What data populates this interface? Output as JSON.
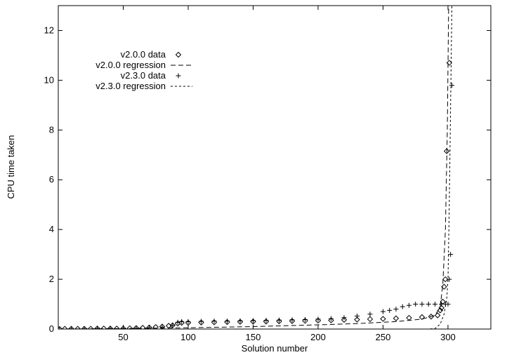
{
  "chart_data": {
    "type": "scatter",
    "xlabel": "Solution number",
    "ylabel": "CPU time taken",
    "xlim": [
      0,
      333
    ],
    "ylim": [
      0,
      13
    ],
    "x_ticks": [
      50,
      100,
      150,
      200,
      250,
      300
    ],
    "y_ticks": [
      0,
      2,
      4,
      6,
      8,
      10,
      12
    ],
    "grid": false,
    "legend_position": "top-left",
    "series": [
      {
        "name": "v2.0.0 data",
        "kind": "points",
        "marker": "diamond",
        "points": [
          [
            1,
            0.0
          ],
          [
            5,
            0.01
          ],
          [
            10,
            0.01
          ],
          [
            15,
            0.01
          ],
          [
            20,
            0.01
          ],
          [
            25,
            0.01
          ],
          [
            30,
            0.02
          ],
          [
            35,
            0.02
          ],
          [
            40,
            0.02
          ],
          [
            45,
            0.02
          ],
          [
            50,
            0.02
          ],
          [
            55,
            0.03
          ],
          [
            60,
            0.04
          ],
          [
            65,
            0.05
          ],
          [
            70,
            0.06
          ],
          [
            75,
            0.08
          ],
          [
            80,
            0.1
          ],
          [
            85,
            0.13
          ],
          [
            88,
            0.15
          ],
          [
            92,
            0.22
          ],
          [
            95,
            0.25
          ],
          [
            100,
            0.25
          ],
          [
            110,
            0.26
          ],
          [
            120,
            0.27
          ],
          [
            130,
            0.28
          ],
          [
            140,
            0.29
          ],
          [
            150,
            0.3
          ],
          [
            160,
            0.3
          ],
          [
            170,
            0.31
          ],
          [
            180,
            0.32
          ],
          [
            190,
            0.33
          ],
          [
            200,
            0.34
          ],
          [
            210,
            0.35
          ],
          [
            220,
            0.37
          ],
          [
            230,
            0.38
          ],
          [
            240,
            0.4
          ],
          [
            250,
            0.41
          ],
          [
            260,
            0.43
          ],
          [
            270,
            0.45
          ],
          [
            280,
            0.48
          ],
          [
            287,
            0.5
          ],
          [
            292,
            0.55
          ],
          [
            294,
            0.75
          ],
          [
            295,
            0.85
          ],
          [
            296,
            1.1
          ],
          [
            297,
            1.7
          ],
          [
            298,
            2.0
          ],
          [
            299,
            7.15
          ],
          [
            301,
            10.7
          ]
        ]
      },
      {
        "name": "v2.0.0 regression",
        "kind": "line",
        "dash": "7,4",
        "points": [
          [
            1,
            0.0
          ],
          [
            50,
            0.02
          ],
          [
            100,
            0.05
          ],
          [
            150,
            0.1
          ],
          [
            200,
            0.17
          ],
          [
            230,
            0.22
          ],
          [
            260,
            0.3
          ],
          [
            280,
            0.4
          ],
          [
            290,
            0.55
          ],
          [
            294,
            0.9
          ],
          [
            296,
            1.8
          ],
          [
            298,
            4.0
          ],
          [
            299.5,
            8.0
          ],
          [
            300.5,
            13.0
          ]
        ]
      },
      {
        "name": "v2.3.0 data",
        "kind": "points",
        "marker": "plus",
        "points": [
          [
            1,
            0.0
          ],
          [
            10,
            0.01
          ],
          [
            20,
            0.01
          ],
          [
            30,
            0.02
          ],
          [
            40,
            0.02
          ],
          [
            50,
            0.02
          ],
          [
            60,
            0.03
          ],
          [
            70,
            0.05
          ],
          [
            80,
            0.08
          ],
          [
            88,
            0.15
          ],
          [
            92,
            0.27
          ],
          [
            95,
            0.3
          ],
          [
            100,
            0.3
          ],
          [
            110,
            0.31
          ],
          [
            120,
            0.32
          ],
          [
            130,
            0.32
          ],
          [
            140,
            0.33
          ],
          [
            150,
            0.34
          ],
          [
            160,
            0.35
          ],
          [
            170,
            0.36
          ],
          [
            180,
            0.37
          ],
          [
            190,
            0.38
          ],
          [
            200,
            0.4
          ],
          [
            210,
            0.42
          ],
          [
            220,
            0.46
          ],
          [
            230,
            0.52
          ],
          [
            240,
            0.6
          ],
          [
            250,
            0.7
          ],
          [
            255,
            0.75
          ],
          [
            260,
            0.8
          ],
          [
            265,
            0.9
          ],
          [
            270,
            0.95
          ],
          [
            275,
            1.0
          ],
          [
            280,
            1.0
          ],
          [
            285,
            1.0
          ],
          [
            290,
            1.0
          ],
          [
            295,
            1.0
          ],
          [
            298,
            1.0
          ],
          [
            300,
            1.0
          ],
          [
            301,
            2.0
          ],
          [
            302,
            3.0
          ],
          [
            303,
            9.8
          ]
        ]
      },
      {
        "name": "v2.3.0 regression",
        "kind": "line",
        "dash": "3,3",
        "points": [
          [
            1,
            0.0
          ],
          [
            150,
            0.0
          ],
          [
            200,
            0.0
          ],
          [
            250,
            0.0
          ],
          [
            285,
            0.0
          ],
          [
            290,
            0.02
          ],
          [
            294,
            0.2
          ],
          [
            297,
            0.6
          ],
          [
            299,
            1.2
          ],
          [
            300,
            2.0
          ],
          [
            301,
            5.0
          ],
          [
            302,
            9.0
          ],
          [
            303,
            13.0
          ]
        ]
      }
    ]
  }
}
